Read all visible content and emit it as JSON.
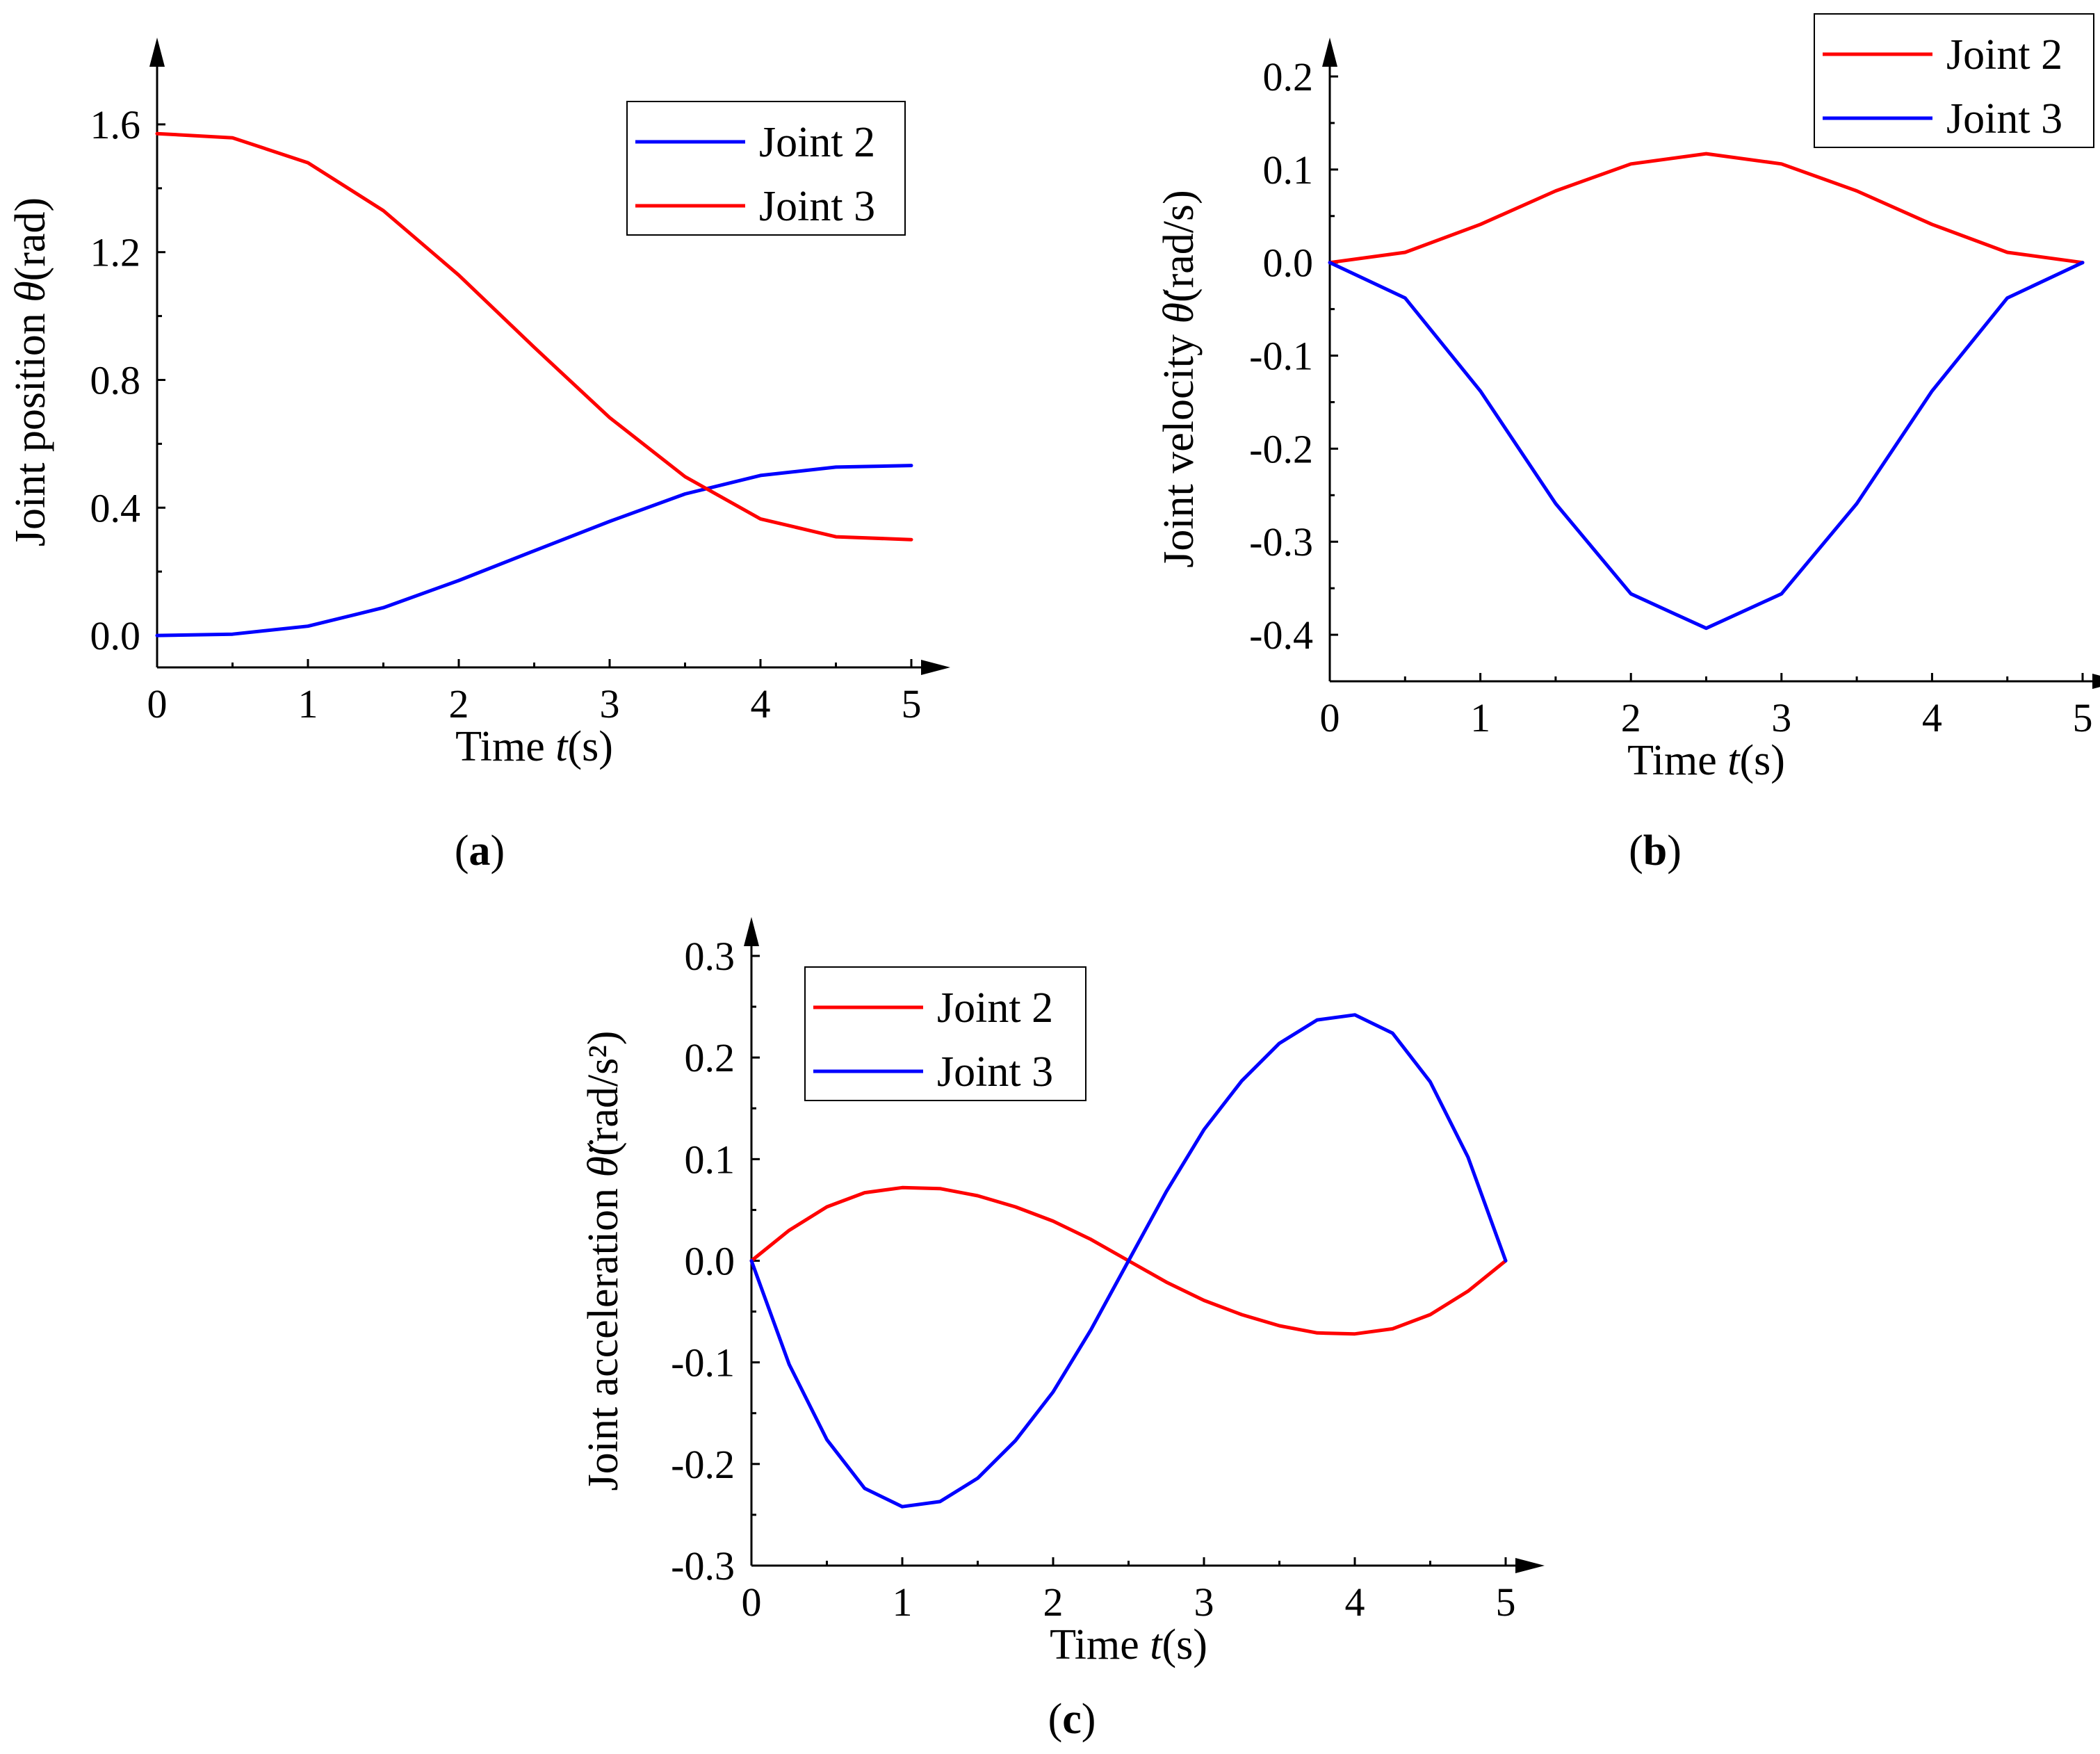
{
  "chart_data": [
    {
      "id": "a",
      "type": "line",
      "panel_label": "a",
      "xlabel": "Time t(s)",
      "xlabel_parts": [
        "Time ",
        "t",
        "(s)"
      ],
      "ylabel": "Joint position θ(rad)",
      "ylabel_parts": [
        "Joint position ",
        "θ",
        "(rad)"
      ],
      "xlim": [
        0,
        5
      ],
      "ylim": [
        -0.1,
        1.75
      ],
      "xticks": [
        0,
        1,
        2,
        3,
        4,
        5
      ],
      "xtick_labels": [
        "0",
        "1",
        "2",
        "3",
        "4",
        "5"
      ],
      "yticks": [
        0.0,
        0.4,
        0.8,
        1.2,
        1.6
      ],
      "ytick_labels": [
        "0.0",
        "0.4",
        "0.8",
        "1.2",
        "1.6"
      ],
      "legend_position": "top-right",
      "series": [
        {
          "name": "Joint 2",
          "color": "#0000ff",
          "x": [
            0,
            0.5,
            1,
            1.5,
            2,
            2.5,
            3,
            3.5,
            4,
            4.5,
            5
          ],
          "values": [
            0.0,
            0.004,
            0.029,
            0.087,
            0.172,
            0.265,
            0.357,
            0.443,
            0.501,
            0.527,
            0.532
          ]
        },
        {
          "name": "Joint 3",
          "color": "#ff0000",
          "x": [
            0,
            0.5,
            1,
            1.5,
            2,
            2.5,
            3,
            3.5,
            4,
            4.5,
            5
          ],
          "values": [
            1.571,
            1.558,
            1.48,
            1.33,
            1.128,
            0.902,
            0.682,
            0.497,
            0.365,
            0.309,
            0.3
          ]
        }
      ]
    },
    {
      "id": "b",
      "type": "line",
      "panel_label": "b",
      "xlabel": "Time t(s)",
      "xlabel_parts": [
        "Time ",
        "t",
        "(s)"
      ],
      "ylabel": "Joint velocity θ̇(rad/s)",
      "ylabel_parts": [
        "Joint velocity  ",
        "θ̇",
        "(rad/s)"
      ],
      "xlim": [
        0,
        5
      ],
      "ylim": [
        -0.45,
        0.2
      ],
      "xticks": [
        0,
        1,
        2,
        3,
        4,
        5
      ],
      "xtick_labels": [
        "0",
        "1",
        "2",
        "3",
        "4",
        "5"
      ],
      "yticks": [
        -0.4,
        -0.3,
        -0.2,
        -0.1,
        0.0,
        0.1,
        0.2
      ],
      "ytick_labels": [
        "-0.4",
        "-0.3",
        "-0.2",
        "-0.1",
        "0.0",
        "0.1",
        "0.2"
      ],
      "legend_position": "top-right",
      "series": [
        {
          "name": "Joint 2",
          "color": "#ff0000",
          "x": [
            0,
            0.5,
            1,
            1.5,
            2,
            2.5,
            3,
            3.5,
            4,
            4.5,
            5
          ],
          "values": [
            0.0,
            0.011,
            0.041,
            0.077,
            0.106,
            0.117,
            0.106,
            0.077,
            0.041,
            0.011,
            0.0
          ]
        },
        {
          "name": "Joint 3",
          "color": "#0000ff",
          "x": [
            0,
            0.5,
            1,
            1.5,
            2,
            2.5,
            3,
            3.5,
            4,
            4.5,
            5
          ],
          "values": [
            0.0,
            -0.038,
            -0.138,
            -0.259,
            -0.356,
            -0.393,
            -0.356,
            -0.259,
            -0.138,
            -0.038,
            0.0
          ]
        }
      ]
    },
    {
      "id": "c",
      "type": "line",
      "panel_label": "c",
      "xlabel": "Time t(s)",
      "xlabel_parts": [
        "Time ",
        "t",
        "(s)"
      ],
      "ylabel": "Joint acceleration θ̈(rad/s²)",
      "ylabel_parts": [
        "Joint acceleration  ",
        "θ̈",
        "(rad/s²)"
      ],
      "xlim": [
        0,
        5
      ],
      "ylim": [
        -0.3,
        0.3
      ],
      "xticks": [
        0,
        1,
        2,
        3,
        4,
        5
      ],
      "xtick_labels": [
        "0",
        "1",
        "2",
        "3",
        "4",
        "5"
      ],
      "yticks": [
        -0.3,
        -0.2,
        -0.1,
        0.0,
        0.1,
        0.2,
        0.3
      ],
      "ytick_labels": [
        "-0.3",
        "-0.2",
        "-0.1",
        "0.0",
        "0.1",
        "0.2",
        "0.3"
      ],
      "legend_position": "top-left",
      "series": [
        {
          "name": "Joint 2",
          "color": "#ff0000",
          "x": [
            0,
            0.25,
            0.5,
            0.75,
            1,
            1.25,
            1.5,
            1.75,
            2,
            2.25,
            2.5,
            2.75,
            3,
            3.25,
            3.5,
            3.75,
            4,
            4.25,
            4.5,
            4.75,
            5
          ],
          "values": [
            0.0,
            0.03,
            0.053,
            0.067,
            0.072,
            0.071,
            0.064,
            0.053,
            0.039,
            0.021,
            0.0,
            -0.021,
            -0.039,
            -0.053,
            -0.064,
            -0.071,
            -0.072,
            -0.067,
            -0.053,
            -0.03,
            0.0
          ]
        },
        {
          "name": "Joint 3",
          "color": "#0000ff",
          "x": [
            0,
            0.25,
            0.5,
            0.75,
            1,
            1.25,
            1.5,
            1.75,
            2,
            2.25,
            2.5,
            2.75,
            3,
            3.25,
            3.5,
            3.75,
            4,
            4.25,
            4.5,
            4.75,
            5
          ],
          "values": [
            0.0,
            -0.102,
            -0.176,
            -0.224,
            -0.242,
            -0.237,
            -0.214,
            -0.177,
            -0.129,
            -0.068,
            0.0,
            0.068,
            0.129,
            0.177,
            0.214,
            0.237,
            0.242,
            0.224,
            0.176,
            0.102,
            0.0
          ]
        }
      ]
    }
  ]
}
